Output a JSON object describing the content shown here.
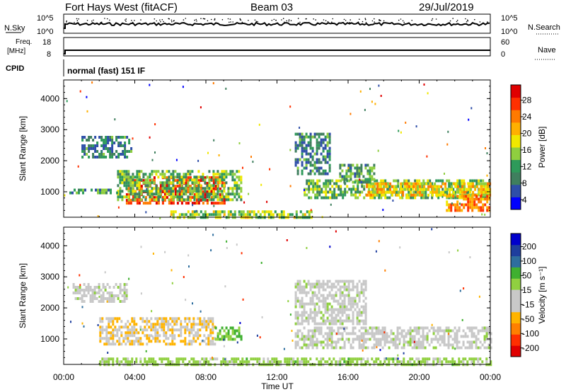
{
  "header": {
    "radar": "Fort Hays West (fitACF)",
    "beam": "Beam 03",
    "date": "29/Jul/2019"
  },
  "top_strips": {
    "nsky": {
      "label": "N.Sky",
      "ticks": [
        "10^5",
        "10^0"
      ]
    },
    "nsearch": {
      "label": "N.Search",
      "ticks": [
        "10^5",
        "10^0"
      ]
    },
    "freq": {
      "label_line1": "Freq.",
      "label_line2": "[MHz]",
      "ticks": [
        "18",
        "8"
      ]
    },
    "nave": {
      "label": "Nave",
      "ticks": [
        "60",
        "0"
      ]
    },
    "cpid": {
      "label": "CPID",
      "value": "normal (fast) 151 IF"
    }
  },
  "colors": {
    "power": [
      "#0000ff",
      "#2e4ea8",
      "#3f7f5e",
      "#2e9a5a",
      "#8fce3f",
      "#f0e800",
      "#ffb000",
      "#ff7a00",
      "#ff3000",
      "#e00000"
    ],
    "velocity": [
      "#e00000",
      "#ff3000",
      "#ff8000",
      "#ffb400",
      "#c8c8c8",
      "#c8c8c8",
      "#90d040",
      "#40b030",
      "#2e6e9e",
      "#1e3e9e",
      "#0000cc"
    ]
  },
  "chart_data": [
    {
      "type": "heatmap",
      "title": "",
      "ylabel": "Slant Range [km]",
      "xlabel": "",
      "colorbar_label": "Power [dB]",
      "colorbar_ticks": [
        "28",
        "24",
        "20",
        "16",
        "12",
        "8",
        "4"
      ],
      "x_ticks": [
        "00:00",
        "04:00",
        "08:00",
        "12:00",
        "16:00",
        "20:00",
        "00:00"
      ],
      "y_ticks": [
        "4000",
        "3000",
        "2000",
        "1000"
      ],
      "xlim_hours": [
        0,
        24
      ],
      "ylim_km": [
        180,
        4600
      ],
      "clim": [
        0,
        30
      ],
      "echo_regions": [
        {
          "t": [
            3.5,
            9.0
          ],
          "r": [
            650,
            1500
          ],
          "value": 26
        },
        {
          "t": [
            3.0,
            10.0
          ],
          "r": [
            700,
            1700
          ],
          "value": 12
        },
        {
          "t": [
            0.2,
            3.0
          ],
          "r": [
            950,
            1100
          ],
          "value": 10
        },
        {
          "t": [
            1.0,
            3.8
          ],
          "r": [
            2100,
            2800
          ],
          "value": 8
        },
        {
          "t": [
            13.5,
            24.0
          ],
          "r": [
            800,
            1400
          ],
          "value": 12
        },
        {
          "t": [
            17.0,
            24.0
          ],
          "r": [
            900,
            1300
          ],
          "value": 18
        },
        {
          "t": [
            21.5,
            24.0
          ],
          "r": [
            400,
            900
          ],
          "value": 22
        },
        {
          "t": [
            13.0,
            15.0
          ],
          "r": [
            1600,
            2900
          ],
          "value": 8
        },
        {
          "t": [
            15.5,
            17.5
          ],
          "r": [
            1300,
            1900
          ],
          "value": 10
        },
        {
          "t": [
            6.0,
            14.0
          ],
          "r": [
            200,
            400
          ],
          "value": 14
        }
      ]
    },
    {
      "type": "heatmap",
      "title": "",
      "ylabel": "Slant Range [km]",
      "xlabel": "Time UT",
      "colorbar_label": "Velocity [m s⁻¹]",
      "colorbar_ticks": [
        "200",
        "100",
        "50",
        "15",
        "-15",
        "-50",
        "-100",
        "-200"
      ],
      "x_ticks": [
        "00:00",
        "04:00",
        "08:00",
        "12:00",
        "16:00",
        "20:00",
        "00:00"
      ],
      "y_ticks": [
        "4000",
        "3000",
        "2000",
        "1000"
      ],
      "xlim_hours": [
        0,
        24
      ],
      "ylim_km": [
        180,
        4600
      ],
      "clim": [
        -250,
        250
      ],
      "echo_regions": [
        {
          "t": [
            2.0,
            8.5
          ],
          "r": [
            800,
            1700
          ],
          "value": -60
        },
        {
          "t": [
            8.5,
            10.0
          ],
          "r": [
            1000,
            1400
          ],
          "value": 60
        },
        {
          "t": [
            0.5,
            3.5
          ],
          "r": [
            2200,
            2800
          ],
          "value": 0
        },
        {
          "t": [
            13.0,
            24.0
          ],
          "r": [
            700,
            1400
          ],
          "value": 0
        },
        {
          "t": [
            13.0,
            17.0
          ],
          "r": [
            1500,
            2900
          ],
          "value": 0
        },
        {
          "t": [
            2.0,
            24.0
          ],
          "r": [
            200,
            400
          ],
          "value": 40
        }
      ]
    }
  ]
}
